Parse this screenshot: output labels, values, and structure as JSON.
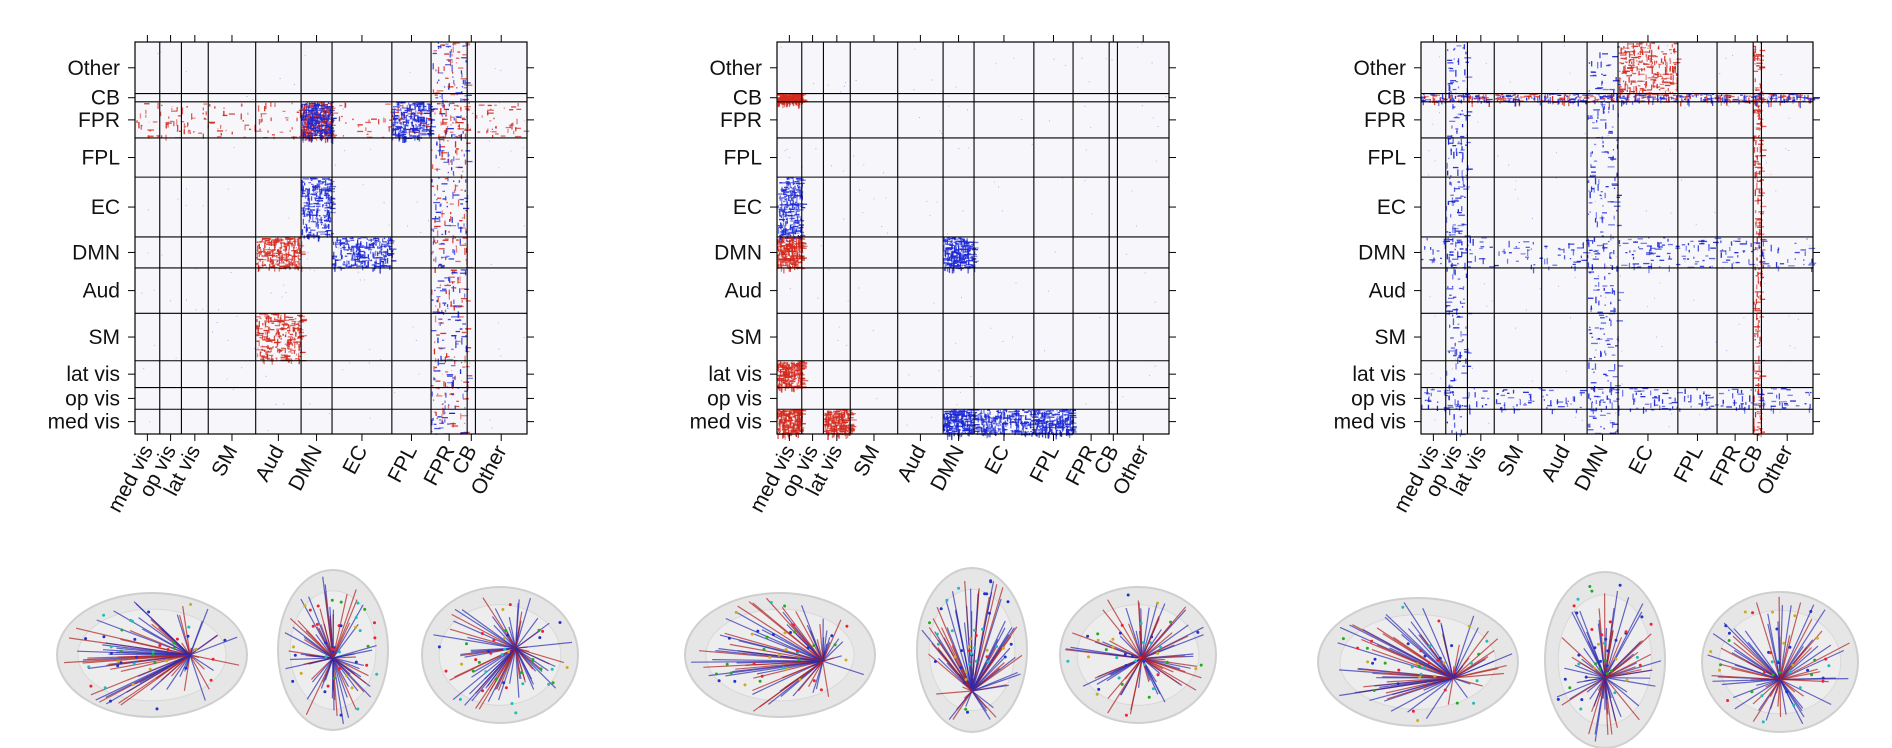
{
  "chart_data": [
    {
      "type": "heatmap",
      "title": "",
      "xlabel": "",
      "ylabel": "",
      "grid": true,
      "colors": {
        "positive": "#d42a1e",
        "negative": "#1c28d4",
        "background": "#f6f6fb"
      },
      "x_categories": [
        "med vis",
        "op vis",
        "lat vis",
        "SM",
        "Aud",
        "DMN",
        "EC",
        "FPL",
        "FPR",
        "CB",
        "Other"
      ],
      "y_categories": [
        "Other",
        "CB",
        "FPR",
        "FPL",
        "EC",
        "DMN",
        "Aud",
        "SM",
        "lat vis",
        "op vis",
        "med vis"
      ],
      "bands_red": [
        [
          "FPR",
          "*"
        ],
        [
          "FPR",
          "DMN"
        ],
        [
          "*",
          "FPR"
        ],
        [
          "DMN",
          "Aud"
        ],
        [
          "SM",
          "Aud"
        ]
      ],
      "bands_blue": [
        [
          "FPR",
          "DMN"
        ],
        [
          "FPR",
          "FPL"
        ],
        [
          "*",
          "FPR"
        ],
        [
          "EC",
          "DMN"
        ],
        [
          "DMN",
          "EC"
        ]
      ]
    },
    {
      "type": "heatmap",
      "title": "",
      "xlabel": "",
      "ylabel": "",
      "grid": true,
      "colors": {
        "positive": "#d42a1e",
        "negative": "#1c28d4",
        "background": "#f6f6fb"
      },
      "x_categories": [
        "med vis",
        "op vis",
        "lat vis",
        "SM",
        "Aud",
        "DMN",
        "EC",
        "FPL",
        "FPR",
        "CB",
        "Other"
      ],
      "y_categories": [
        "Other",
        "CB",
        "FPR",
        "FPL",
        "EC",
        "DMN",
        "Aud",
        "SM",
        "lat vis",
        "op vis",
        "med vis"
      ],
      "bands_red": [
        [
          "med vis",
          "med vis"
        ],
        [
          "med vis",
          "lat vis"
        ],
        [
          "lat vis",
          "med vis"
        ],
        [
          "CB",
          "med vis"
        ],
        [
          "DMN",
          "med vis"
        ]
      ],
      "bands_blue": [
        [
          "med vis",
          "DMN"
        ],
        [
          "med vis",
          "EC"
        ],
        [
          "med vis",
          "FPL"
        ],
        [
          "EC",
          "med vis"
        ],
        [
          "DMN",
          "DMN"
        ]
      ]
    },
    {
      "type": "heatmap",
      "title": "",
      "xlabel": "",
      "ylabel": "",
      "grid": true,
      "colors": {
        "positive": "#d42a1e",
        "negative": "#1c28d4",
        "background": "#f6f6fb"
      },
      "x_categories": [
        "med vis",
        "op vis",
        "lat vis",
        "SM",
        "Aud",
        "DMN",
        "EC",
        "FPL",
        "FPR",
        "CB",
        "Other"
      ],
      "y_categories": [
        "Other",
        "CB",
        "FPR",
        "FPL",
        "EC",
        "DMN",
        "Aud",
        "SM",
        "lat vis",
        "op vis",
        "med vis"
      ],
      "bands_red": [
        [
          "CB",
          "*"
        ],
        [
          "*",
          "CB"
        ],
        [
          "Other",
          "EC"
        ]
      ],
      "bands_blue": [
        [
          "CB",
          "*"
        ],
        [
          "DMN",
          "*"
        ],
        [
          "op vis",
          "*"
        ],
        [
          "*",
          "DMN"
        ],
        [
          "*",
          "op vis"
        ]
      ]
    }
  ],
  "brain_views": [
    {
      "figure": 1,
      "views": [
        "sagittal",
        "axial",
        "coronal"
      ]
    },
    {
      "figure": 2,
      "views": [
        "sagittal",
        "axial",
        "coronal"
      ]
    },
    {
      "figure": 3,
      "views": [
        "sagittal",
        "axial",
        "coronal"
      ]
    }
  ]
}
